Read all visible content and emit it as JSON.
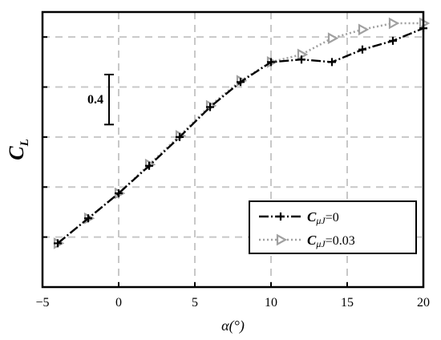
{
  "chart_data": {
    "type": "line",
    "xlabel": "α(°)",
    "ylabel": {
      "main": "C",
      "sub": "L"
    },
    "xlim": [
      -5,
      20
    ],
    "ylim": [
      -0.35,
      1.85
    ],
    "xticks": [
      -5,
      0,
      5,
      10,
      15,
      20
    ],
    "xtick_labels": [
      "−5",
      "0",
      "5",
      "10",
      "15",
      "20"
    ],
    "grid": true,
    "scale_bar": {
      "label": "0.4",
      "from": 0.95,
      "to": 1.35
    },
    "legend": {
      "placement": "bottom-right"
    },
    "series": [
      {
        "key": "s0",
        "name": "=0",
        "name_symbol": "C",
        "name_sub": "μJ",
        "color": "#000000",
        "marker": "plus",
        "style": "dashdot",
        "x": [
          -4,
          -2,
          0,
          2,
          4,
          6,
          8,
          10,
          12,
          14,
          16,
          18,
          20
        ],
        "y": [
          0.0,
          0.2,
          0.4,
          0.62,
          0.85,
          1.09,
          1.29,
          1.45,
          1.47,
          1.45,
          1.55,
          1.62,
          1.72
        ]
      },
      {
        "key": "s1",
        "name": "=0.03",
        "name_symbol": "C",
        "name_sub": "μJ",
        "color": "#a0a0a0",
        "marker": "triangle-right",
        "style": "dotted",
        "x": [
          -4,
          -2,
          0,
          2,
          4,
          6,
          8,
          10,
          12,
          14,
          16,
          18,
          20
        ],
        "y": [
          0.0,
          0.2,
          0.4,
          0.63,
          0.86,
          1.1,
          1.3,
          1.45,
          1.51,
          1.64,
          1.71,
          1.76,
          1.76
        ]
      }
    ]
  }
}
